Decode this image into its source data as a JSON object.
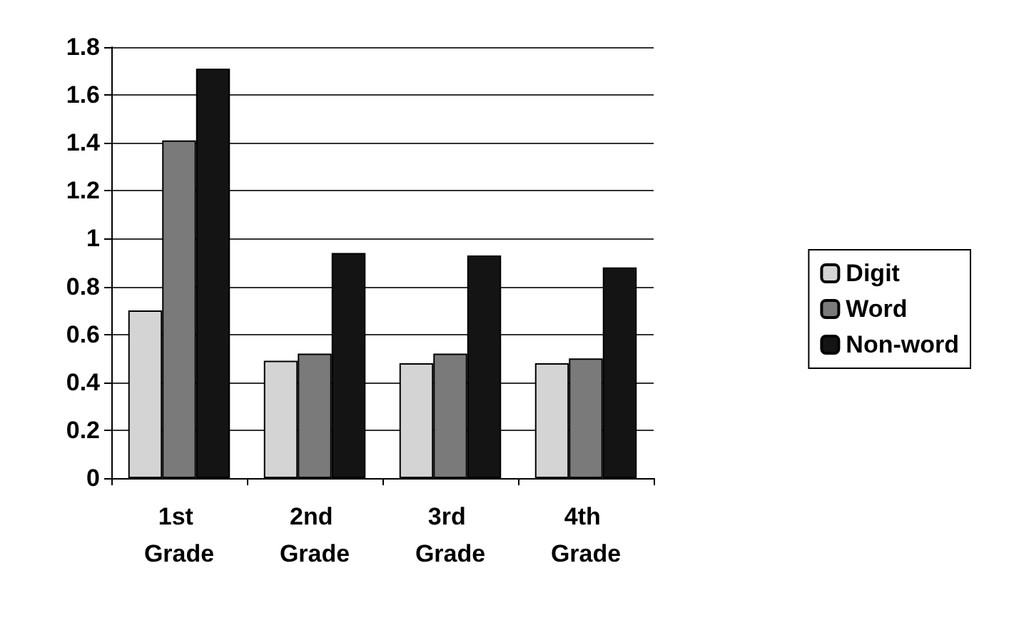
{
  "chart_data": {
    "type": "bar",
    "categories": [
      "1st Grade",
      "2nd Grade",
      "3rd Grade",
      "4th Grade"
    ],
    "series": [
      {
        "name": "Digit",
        "color": "#d4d4d4",
        "values": [
          0.7,
          0.49,
          0.48,
          0.48
        ]
      },
      {
        "name": "Word",
        "color": "#7a7a7a",
        "values": [
          1.41,
          0.52,
          0.52,
          0.5
        ]
      },
      {
        "name": "Non-word",
        "color": "#141414",
        "values": [
          1.71,
          0.94,
          0.93,
          0.88
        ]
      }
    ],
    "ylim": [
      0,
      1.8
    ],
    "yticks": [
      0,
      0.2,
      0.4,
      0.6,
      0.8,
      1,
      1.2,
      1.4,
      1.6,
      1.8
    ],
    "grid": "y",
    "legend": "right"
  }
}
